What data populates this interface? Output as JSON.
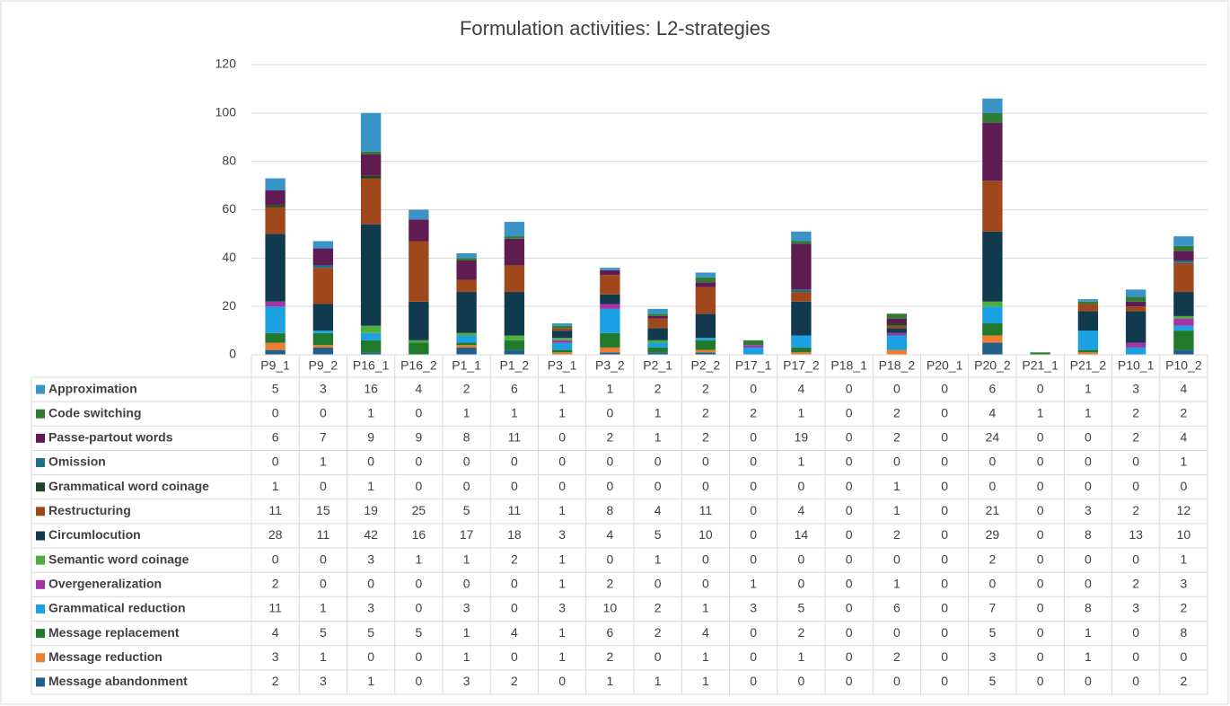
{
  "chart_data": {
    "type": "stacked_bar",
    "title": "Formulation activities: L2-strategies",
    "categories": [
      "P9_1",
      "P9_2",
      "P16_1",
      "P16_2",
      "P1_1",
      "P1_2",
      "P3_1",
      "P3_2",
      "P2_1",
      "P2_2",
      "P17_1",
      "P17_2",
      "P18_1",
      "P18_2",
      "P20_1",
      "P20_2",
      "P21_1",
      "P21_2",
      "P10_1",
      "P10_2"
    ],
    "ylim": [
      0,
      120
    ],
    "yticks": [
      0,
      20,
      40,
      60,
      80,
      100,
      120
    ],
    "grid": true,
    "data_table": true,
    "series": [
      {
        "name": "Approximation",
        "color": "#3a94c8",
        "values": [
          5,
          3,
          16,
          4,
          2,
          6,
          1,
          1,
          2,
          2,
          0,
          4,
          0,
          0,
          0,
          6,
          0,
          1,
          3,
          4
        ]
      },
      {
        "name": "Code switching",
        "color": "#2f7d32",
        "values": [
          0,
          0,
          1,
          0,
          1,
          1,
          1,
          0,
          1,
          2,
          2,
          1,
          0,
          2,
          0,
          4,
          1,
          1,
          2,
          2
        ]
      },
      {
        "name": "Passe-partout words",
        "color": "#5e1c52",
        "values": [
          6,
          7,
          9,
          9,
          8,
          11,
          0,
          2,
          1,
          2,
          0,
          19,
          0,
          2,
          0,
          24,
          0,
          0,
          2,
          4
        ]
      },
      {
        "name": "Omission",
        "color": "#1f6e8c",
        "values": [
          0,
          1,
          0,
          0,
          0,
          0,
          0,
          0,
          0,
          0,
          0,
          1,
          0,
          0,
          0,
          0,
          0,
          0,
          0,
          1
        ]
      },
      {
        "name": "Grammatical word coinage",
        "color": "#1b4620",
        "values": [
          1,
          0,
          1,
          0,
          0,
          0,
          0,
          0,
          0,
          0,
          0,
          0,
          0,
          1,
          0,
          0,
          0,
          0,
          0,
          0
        ]
      },
      {
        "name": "Restructuring",
        "color": "#a0481c",
        "values": [
          11,
          15,
          19,
          25,
          5,
          11,
          1,
          8,
          4,
          11,
          0,
          4,
          0,
          1,
          0,
          21,
          0,
          3,
          2,
          12
        ]
      },
      {
        "name": "Circumlocution",
        "color": "#123a4e",
        "values": [
          28,
          11,
          42,
          16,
          17,
          18,
          3,
          4,
          5,
          10,
          0,
          14,
          0,
          2,
          0,
          29,
          0,
          8,
          13,
          10
        ]
      },
      {
        "name": "Semantic word coinage",
        "color": "#4eae3c",
        "values": [
          0,
          0,
          3,
          1,
          1,
          2,
          1,
          0,
          1,
          0,
          0,
          0,
          0,
          0,
          0,
          2,
          0,
          0,
          0,
          1
        ]
      },
      {
        "name": "Overgeneralization",
        "color": "#a532a8",
        "values": [
          2,
          0,
          0,
          0,
          0,
          0,
          1,
          2,
          0,
          0,
          1,
          0,
          0,
          1,
          0,
          0,
          0,
          0,
          2,
          3
        ]
      },
      {
        "name": "Grammatical reduction",
        "color": "#1ba1e2",
        "values": [
          11,
          1,
          3,
          0,
          3,
          0,
          3,
          10,
          2,
          1,
          3,
          5,
          0,
          6,
          0,
          7,
          0,
          8,
          3,
          2
        ]
      },
      {
        "name": "Message replacement",
        "color": "#217a2c",
        "values": [
          4,
          5,
          5,
          5,
          1,
          4,
          1,
          6,
          2,
          4,
          0,
          2,
          0,
          0,
          0,
          5,
          0,
          1,
          0,
          8
        ]
      },
      {
        "name": "Message reduction",
        "color": "#ed7d31",
        "values": [
          3,
          1,
          0,
          0,
          1,
          0,
          1,
          2,
          0,
          1,
          0,
          1,
          0,
          2,
          0,
          3,
          0,
          1,
          0,
          0
        ]
      },
      {
        "name": "Message abandonment",
        "color": "#1f5f8a",
        "values": [
          2,
          3,
          1,
          0,
          3,
          2,
          0,
          1,
          1,
          1,
          0,
          0,
          0,
          0,
          0,
          5,
          0,
          0,
          0,
          2
        ]
      }
    ]
  }
}
